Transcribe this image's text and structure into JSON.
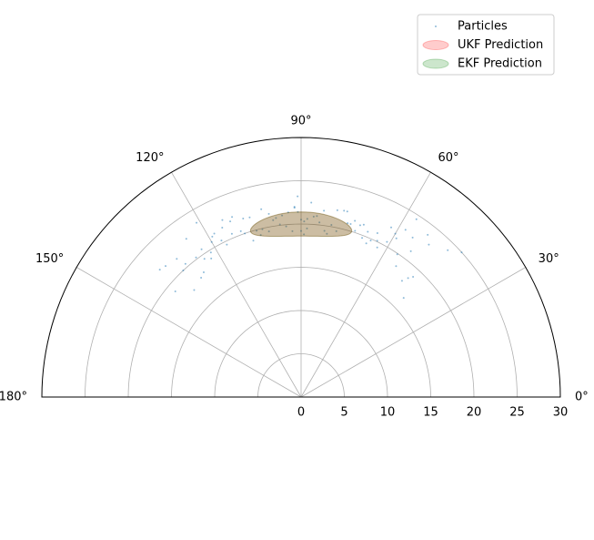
{
  "chart_data": {
    "type": "polar-scatter",
    "thetalim": [
      0,
      180
    ],
    "rlim": [
      0,
      30
    ],
    "thetaticks": [
      {
        "value": 0,
        "label": "0°"
      },
      {
        "value": 30,
        "label": "30°"
      },
      {
        "value": 60,
        "label": "60°"
      },
      {
        "value": 90,
        "label": "90°"
      },
      {
        "value": 120,
        "label": "120°"
      },
      {
        "value": 150,
        "label": "150°"
      },
      {
        "value": 180,
        "label": "180°"
      }
    ],
    "rticks": [
      0,
      5,
      10,
      15,
      20,
      25,
      30
    ],
    "grid": true,
    "legend": "upper right",
    "series": [
      {
        "name": "Particles",
        "color": "#1f77b4",
        "theta": [
          90,
          85,
          95,
          80,
          100,
          88,
          92,
          75,
          105,
          70,
          110,
          65,
          115,
          60,
          120,
          55,
          125,
          50,
          130,
          45,
          135,
          140,
          42,
          138,
          87,
          93,
          83,
          97,
          78,
          102,
          73,
          107,
          68,
          112,
          63,
          117,
          58,
          122,
          53,
          127,
          48,
          132,
          91,
          89,
          86,
          94,
          81,
          99,
          76,
          104,
          71,
          109,
          66,
          114,
          61,
          119,
          56,
          124,
          90,
          84,
          96,
          79,
          101,
          74,
          106,
          69,
          111,
          64,
          116,
          59,
          121,
          54,
          126,
          49,
          131,
          44,
          136,
          92,
          88,
          82,
          98,
          77,
          103,
          72,
          108,
          67,
          113,
          62,
          118,
          57,
          123,
          52,
          128,
          47,
          133,
          89,
          91
        ],
        "r": [
          20.5,
          21,
          19.8,
          20.2,
          21.5,
          19.5,
          22,
          20.8,
          19.9,
          21.2,
          20.4,
          20.9,
          21.6,
          21.8,
          20.7,
          22.5,
          19.5,
          23,
          18,
          24,
          17.5,
          19,
          25,
          22,
          22.5,
          19.2,
          21.7,
          20.1,
          19.6,
          22.2,
          21.3,
          18.9,
          20.6,
          21.9,
          19.4,
          20.3,
          22.8,
          19.7,
          21.1,
          20.2,
          18.5,
          21.5,
          23.2,
          18.8,
          20.9,
          21.4,
          19.1,
          20.7,
          22.1,
          19.3,
          21,
          20,
          19.8,
          22.4,
          20.5,
          21.2,
          19.9,
          20.6,
          19.2,
          20.3,
          21.1,
          22,
          19.5,
          20.8,
          21.6,
          19.7,
          22.3,
          20.1,
          19.6,
          21.4,
          23.5,
          18.7,
          22.6,
          17.8,
          20.4,
          16.5,
          21.8,
          21.9,
          20.6,
          19.4,
          20.9,
          22.1,
          19.9,
          20.2,
          21.7,
          19.3,
          20.5,
          22.2,
          21.4,
          24.5,
          19.1,
          23.8,
          18.3,
          19,
          20,
          20.3,
          21.4
        ]
      }
    ],
    "ellipses": [
      {
        "name": "UKF Prediction",
        "color": "#ff0000",
        "center": [
          90,
          20
        ],
        "width": 34,
        "height": 2.8
      },
      {
        "name": "EKF Prediction",
        "color": "#008000",
        "center": [
          90,
          20
        ],
        "width": 34,
        "height": 2.8
      }
    ]
  }
}
